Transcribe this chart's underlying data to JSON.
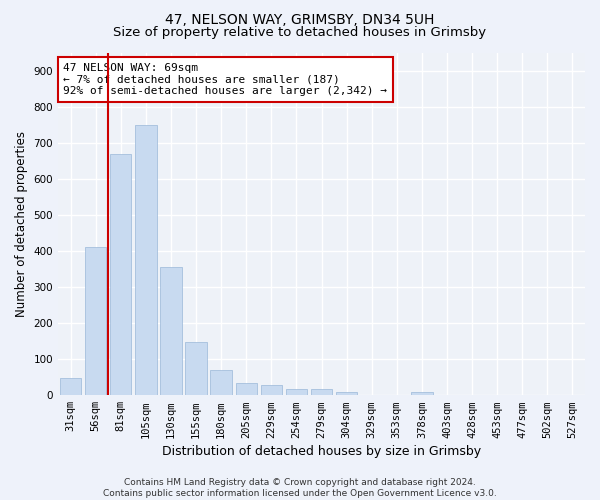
{
  "title": "47, NELSON WAY, GRIMSBY, DN34 5UH",
  "subtitle": "Size of property relative to detached houses in Grimsby",
  "xlabel": "Distribution of detached houses by size in Grimsby",
  "ylabel": "Number of detached properties",
  "bar_labels": [
    "31sqm",
    "56sqm",
    "81sqm",
    "105sqm",
    "130sqm",
    "155sqm",
    "180sqm",
    "205sqm",
    "229sqm",
    "254sqm",
    "279sqm",
    "304sqm",
    "329sqm",
    "353sqm",
    "378sqm",
    "403sqm",
    "428sqm",
    "453sqm",
    "477sqm",
    "502sqm",
    "527sqm"
  ],
  "bar_values": [
    47,
    410,
    670,
    750,
    355,
    148,
    70,
    35,
    27,
    18,
    16,
    10,
    0,
    0,
    10,
    0,
    0,
    0,
    0,
    0,
    0
  ],
  "bar_color": "#c8daf0",
  "bar_edgecolor": "#9ab8d8",
  "vline_x_index": 1.5,
  "vline_color": "#cc0000",
  "annotation_text": "47 NELSON WAY: 69sqm\n← 7% of detached houses are smaller (187)\n92% of semi-detached houses are larger (2,342) →",
  "annotation_box_color": "#ffffff",
  "annotation_box_edgecolor": "#cc0000",
  "ylim": [
    0,
    950
  ],
  "yticks": [
    0,
    100,
    200,
    300,
    400,
    500,
    600,
    700,
    800,
    900
  ],
  "footer_text": "Contains HM Land Registry data © Crown copyright and database right 2024.\nContains public sector information licensed under the Open Government Licence v3.0.",
  "bg_color": "#eef2fa",
  "plot_bg_color": "#eef2f8",
  "grid_color": "#ffffff",
  "title_fontsize": 10,
  "subtitle_fontsize": 9.5,
  "tick_fontsize": 7.5,
  "ylabel_fontsize": 8.5,
  "xlabel_fontsize": 9,
  "annotation_fontsize": 8,
  "footer_fontsize": 6.5
}
